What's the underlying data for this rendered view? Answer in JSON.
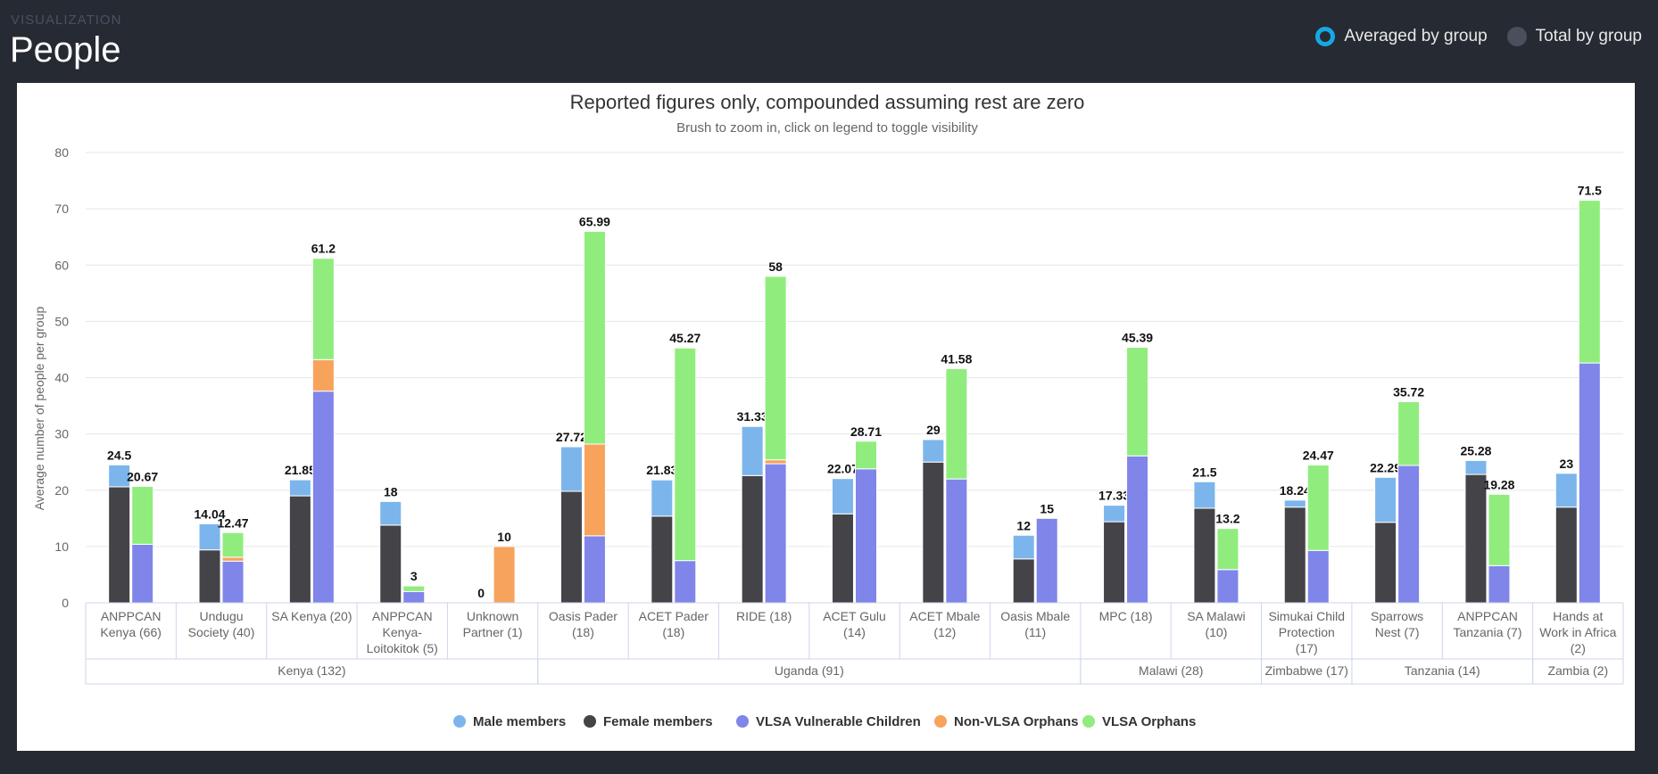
{
  "header": {
    "overline": "VISUALIZATION",
    "title": "People"
  },
  "toggle": {
    "averaged_label": "Averaged by group",
    "total_label": "Total by group"
  },
  "colors": {
    "male": "#7cb5ec",
    "female": "#434348",
    "vlsa_children": "#8085e9",
    "non_vlsa_orphans": "#f7a35c",
    "vlsa_orphans": "#90ed7d",
    "accent": "#17a8e3"
  },
  "chart_data": {
    "type": "bar",
    "stacked": true,
    "title": "Reported figures only, compounded assuming rest are zero",
    "subtitle": "Brush to zoom in, click on legend to toggle visibility",
    "ylabel": "Average number of people per group",
    "ylim": [
      0,
      80
    ],
    "yticks": [
      0,
      10,
      20,
      30,
      40,
      50,
      60,
      70,
      80
    ],
    "legend": [
      "Male members",
      "Female members",
      "VLSA Vulnerable Children",
      "Non-VLSA Orphans",
      "VLSA Orphans"
    ],
    "legend_position": "bottom",
    "categories": [
      {
        "label": [
          "ANPPCAN",
          "Kenya (66)"
        ],
        "members": {
          "female": 20.6,
          "male": 3.9,
          "total": "24.5"
        },
        "children": {
          "vlsa_children": 10.4,
          "non_vlsa_orphans": 0,
          "vlsa_orphans": 10.27,
          "total": "20.67"
        }
      },
      {
        "label": [
          "Undugu",
          "Society (40)"
        ],
        "members": {
          "female": 9.4,
          "male": 4.64,
          "total": "14.04"
        },
        "children": {
          "vlsa_children": 7.4,
          "non_vlsa_orphans": 0.7,
          "vlsa_orphans": 4.37,
          "total": "12.47"
        }
      },
      {
        "label": [
          "SA Kenya (20)"
        ],
        "members": {
          "female": 19.0,
          "male": 2.85,
          "total": "21.85"
        },
        "children": {
          "vlsa_children": 37.6,
          "non_vlsa_orphans": 5.6,
          "vlsa_orphans": 18.0,
          "total": "61.2"
        }
      },
      {
        "label": [
          "ANPPCAN",
          "Kenya-",
          "Loitokitok (5)"
        ],
        "members": {
          "female": 13.8,
          "male": 4.2,
          "total": "18"
        },
        "children": {
          "vlsa_children": 2.0,
          "non_vlsa_orphans": 0,
          "vlsa_orphans": 1.0,
          "total": "3"
        }
      },
      {
        "label": [
          "Unknown",
          "Partner (1)"
        ],
        "members": {
          "female": 0,
          "male": 0,
          "total": "0"
        },
        "children": {
          "vlsa_children": 0,
          "non_vlsa_orphans": 10,
          "vlsa_orphans": 0,
          "total": "10"
        }
      },
      {
        "label": [
          "Oasis Pader",
          "(18)"
        ],
        "members": {
          "female": 19.8,
          "male": 7.92,
          "total": "27.72"
        },
        "children": {
          "vlsa_children": 11.9,
          "non_vlsa_orphans": 16.3,
          "vlsa_orphans": 37.79,
          "total": "65.99"
        }
      },
      {
        "label": [
          "ACET Pader",
          "(18)"
        ],
        "members": {
          "female": 15.4,
          "male": 6.43,
          "total": "21.83"
        },
        "children": {
          "vlsa_children": 7.5,
          "non_vlsa_orphans": 0,
          "vlsa_orphans": 37.77,
          "total": "45.27"
        }
      },
      {
        "label": [
          "RIDE (18)"
        ],
        "members": {
          "female": 22.6,
          "male": 8.73,
          "total": "31.33"
        },
        "children": {
          "vlsa_children": 24.7,
          "non_vlsa_orphans": 0.7,
          "vlsa_orphans": 32.6,
          "total": "58"
        }
      },
      {
        "label": [
          "ACET Gulu",
          "(14)"
        ],
        "members": {
          "female": 15.8,
          "male": 6.27,
          "total": "22.07"
        },
        "children": {
          "vlsa_children": 23.8,
          "non_vlsa_orphans": 0,
          "vlsa_orphans": 4.91,
          "total": "28.71"
        }
      },
      {
        "label": [
          "ACET Mbale",
          "(12)"
        ],
        "members": {
          "female": 25.0,
          "male": 4.0,
          "total": "29"
        },
        "children": {
          "vlsa_children": 22.0,
          "non_vlsa_orphans": 0,
          "vlsa_orphans": 19.58,
          "total": "41.58"
        }
      },
      {
        "label": [
          "Oasis Mbale",
          "(11)"
        ],
        "members": {
          "female": 7.8,
          "male": 4.2,
          "total": "12"
        },
        "children": {
          "vlsa_children": 15.0,
          "non_vlsa_orphans": 0,
          "vlsa_orphans": 0,
          "total": "15"
        }
      },
      {
        "label": [
          "MPC (18)"
        ],
        "members": {
          "female": 14.4,
          "male": 2.93,
          "total": "17.33"
        },
        "children": {
          "vlsa_children": 26.1,
          "non_vlsa_orphans": 0,
          "vlsa_orphans": 19.29,
          "total": "45.39"
        }
      },
      {
        "label": [
          "SA Malawi",
          "(10)"
        ],
        "members": {
          "female": 16.8,
          "male": 4.7,
          "total": "21.5"
        },
        "children": {
          "vlsa_children": 5.9,
          "non_vlsa_orphans": 0,
          "vlsa_orphans": 7.3,
          "total": "13.2"
        }
      },
      {
        "label": [
          "Simukai Child",
          "Protection",
          "(17)"
        ],
        "members": {
          "female": 17.0,
          "male": 1.24,
          "total": "18.24"
        },
        "children": {
          "vlsa_children": 9.3,
          "non_vlsa_orphans": 0,
          "vlsa_orphans": 15.17,
          "total": "24.47"
        }
      },
      {
        "label": [
          "Sparrows",
          "Nest (7)"
        ],
        "members": {
          "female": 14.3,
          "male": 7.99,
          "total": "22.29"
        },
        "children": {
          "vlsa_children": 24.4,
          "non_vlsa_orphans": 0,
          "vlsa_orphans": 11.32,
          "total": "35.72"
        }
      },
      {
        "label": [
          "ANPPCAN",
          "Tanzania (7)"
        ],
        "members": {
          "female": 22.8,
          "male": 2.48,
          "total": "25.28"
        },
        "children": {
          "vlsa_children": 6.6,
          "non_vlsa_orphans": 0,
          "vlsa_orphans": 12.68,
          "total": "19.28"
        }
      },
      {
        "label": [
          "Hands at",
          "Work in Africa",
          "(2)"
        ],
        "members": {
          "female": 17.0,
          "male": 6.0,
          "total": "23"
        },
        "children": {
          "vlsa_children": 42.6,
          "non_vlsa_orphans": 0,
          "vlsa_orphans": 28.9,
          "total": "71.5"
        }
      }
    ],
    "groups": [
      {
        "label": "Kenya (132)",
        "start": 0,
        "count": 5
      },
      {
        "label": "Uganda (91)",
        "start": 5,
        "count": 6
      },
      {
        "label": "Malawi (28)",
        "start": 11,
        "count": 2
      },
      {
        "label": "Zimbabwe (17)",
        "start": 13,
        "count": 1
      },
      {
        "label": "Tanzania (14)",
        "start": 14,
        "count": 2
      },
      {
        "label": "Zambia (2)",
        "start": 16,
        "count": 1
      }
    ]
  }
}
